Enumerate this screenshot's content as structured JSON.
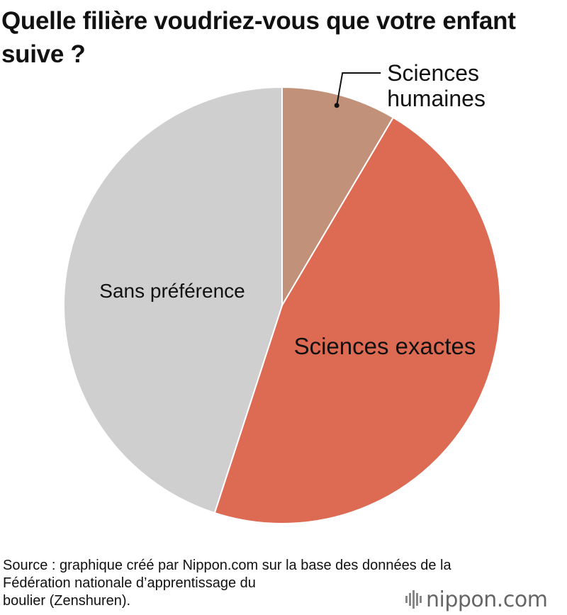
{
  "title": "Quelle filière voudriez-vous que votre enfant suive ?",
  "chart_data": {
    "type": "pie",
    "start": "top",
    "direction": "clockwise",
    "slices": [
      {
        "label": [
          "Sciences",
          "humaines"
        ],
        "value": 8.5,
        "color": "#c2917a",
        "callout": true
      },
      {
        "label": [
          "Sciences exactes"
        ],
        "value": 46.5,
        "color": "#dd6a52"
      },
      {
        "label": [
          "Sans préférence"
        ],
        "value": 45.0,
        "color": "#cfcfcf"
      }
    ]
  },
  "source": {
    "lines": [
      "Source : graphique créé par Nippon.com sur la base des données de la",
      "Fédération nationale d’apprentissage du",
      "boulier (Zenshuren)."
    ]
  },
  "logo": {
    "text": "nippon.com"
  }
}
